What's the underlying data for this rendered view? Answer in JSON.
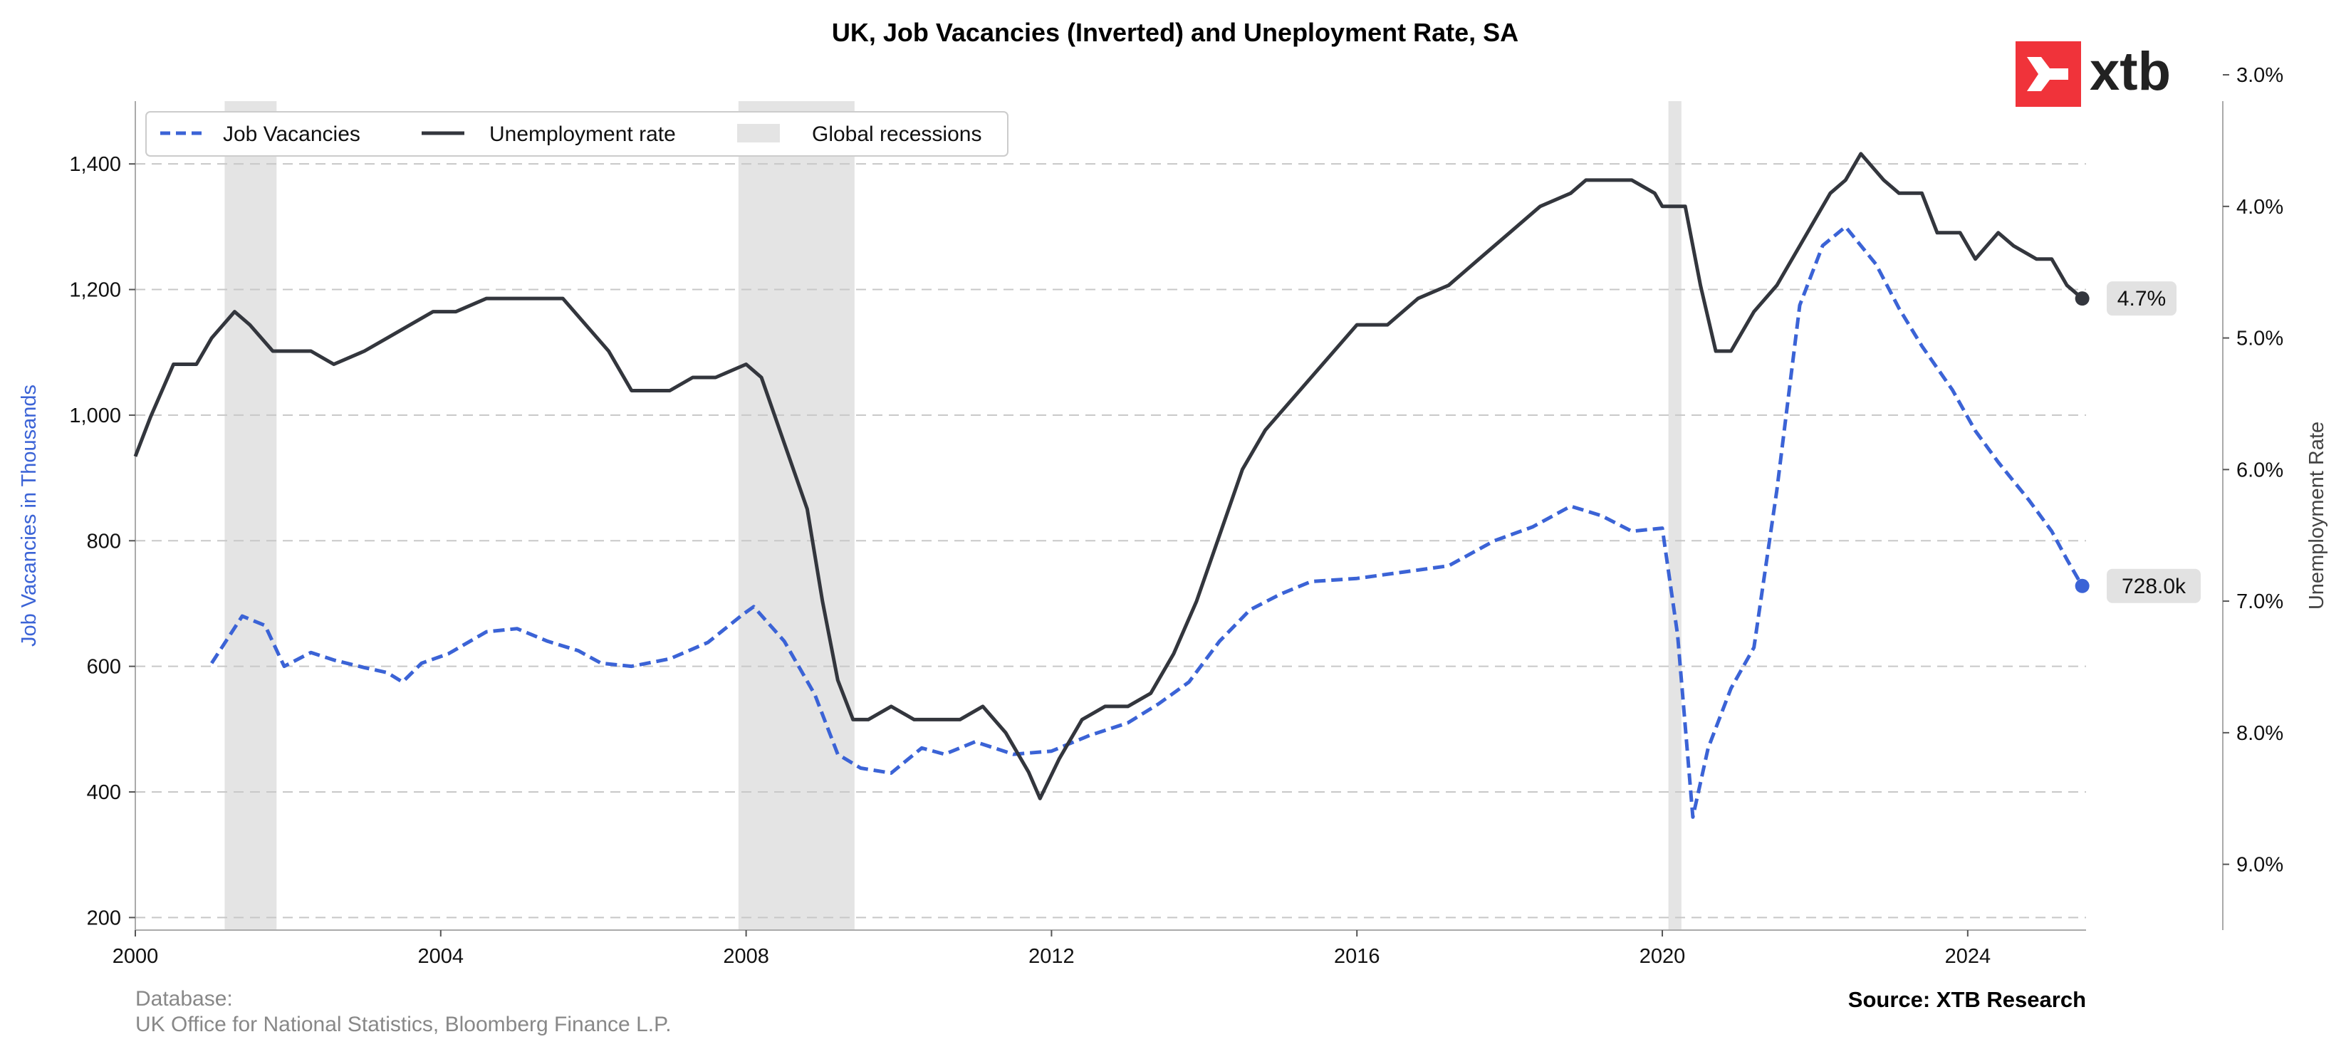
{
  "header": {
    "title": "UK, Job Vacancies (Inverted) and Uneployment Rate, SA",
    "logo_text": "xtb"
  },
  "footer": {
    "database_label": "Database:",
    "database_sources": "UK Office for National Statistics, Bloomberg Finance L.P.",
    "source": "Source: XTB Research"
  },
  "colors": {
    "vacancies": "#3b63d6",
    "unemployment": "#33363d",
    "recession": "#e4e4e4",
    "grid": "#c8c8c8",
    "logo_red": "#f0333a"
  },
  "chart_data": {
    "type": "line",
    "title": "UK, Job Vacancies (Inverted) and Uneployment Rate, SA",
    "x_axis": {
      "ticks": [
        "2000",
        "2004",
        "2008",
        "2012",
        "2016",
        "2020",
        "2024"
      ],
      "range": [
        2000.0,
        2025.55
      ]
    },
    "y_left": {
      "label": "Job Vacancies in Thousands",
      "range": [
        180,
        1500
      ],
      "ticks": [
        "200",
        "400",
        "600",
        "800",
        "1,000",
        "1,200",
        "1,400"
      ]
    },
    "y_right": {
      "label": "Unemployment Rate",
      "inverted": true,
      "range": [
        3.2,
        9.5
      ],
      "ticks": [
        "3.0%",
        "4.0%",
        "5.0%",
        "6.0%",
        "7.0%",
        "8.0%",
        "9.0%"
      ]
    },
    "grid": "horizontal dashed",
    "legend": {
      "position": "top-left",
      "entries": [
        {
          "label": "Job Vacancies",
          "style": "dashed"
        },
        {
          "label": "Unemployment rate",
          "style": "solid"
        },
        {
          "label": "Global recessions",
          "style": "band"
        }
      ]
    },
    "recessions": [
      [
        2001.17,
        2001.85
      ],
      [
        2007.9,
        2009.42
      ],
      [
        2020.08,
        2020.25
      ]
    ],
    "series": [
      {
        "name": "Job Vacancies",
        "axis": "left",
        "end_label": "728.0k",
        "x": [
          2001.0,
          2001.4,
          2001.7,
          2001.95,
          2002.3,
          2002.6,
          2003.0,
          2003.3,
          2003.5,
          2003.75,
          2004.1,
          2004.6,
          2005.0,
          2005.4,
          2005.8,
          2006.1,
          2006.5,
          2007.0,
          2007.5,
          2007.95,
          2008.1,
          2008.5,
          2008.9,
          2009.2,
          2009.5,
          2009.9,
          2010.3,
          2010.6,
          2011.0,
          2011.5,
          2012.0,
          2012.5,
          2013.0,
          2013.4,
          2013.8,
          2014.2,
          2014.6,
          2015.0,
          2015.4,
          2016.0,
          2016.6,
          2017.2,
          2017.8,
          2018.3,
          2018.8,
          2019.2,
          2019.6,
          2020.0,
          2020.2,
          2020.4,
          2020.6,
          2020.9,
          2021.2,
          2021.5,
          2021.8,
          2022.1,
          2022.4,
          2022.8,
          2023.1,
          2023.4,
          2023.8,
          2024.1,
          2024.4,
          2024.8,
          2025.1,
          2025.3,
          2025.5
        ],
        "y": [
          605,
          680,
          665,
          600,
          622,
          610,
          598,
          590,
          575,
          605,
          620,
          655,
          660,
          640,
          625,
          605,
          600,
          612,
          638,
          682,
          695,
          640,
          555,
          460,
          438,
          430,
          470,
          460,
          480,
          460,
          465,
          490,
          510,
          540,
          575,
          640,
          690,
          715,
          735,
          740,
          750,
          760,
          800,
          822,
          855,
          840,
          815,
          820,
          650,
          360,
          470,
          565,
          630,
          880,
          1175,
          1270,
          1300,
          1240,
          1170,
          1110,
          1040,
          975,
          925,
          865,
          815,
          770,
          728
        ]
      },
      {
        "name": "Unemployment rate",
        "axis": "right",
        "end_label": "4.7%",
        "x": [
          2000.0,
          2000.2,
          2000.5,
          2000.8,
          2001.0,
          2001.3,
          2001.5,
          2001.8,
          2002.0,
          2002.3,
          2002.6,
          2003.0,
          2003.3,
          2003.6,
          2003.9,
          2004.2,
          2004.6,
          2005.0,
          2005.3,
          2005.6,
          2005.9,
          2006.2,
          2006.5,
          2006.8,
          2007.0,
          2007.3,
          2007.6,
          2008.0,
          2008.2,
          2008.5,
          2008.8,
          2009.0,
          2009.2,
          2009.4,
          2009.6,
          2009.9,
          2010.2,
          2010.5,
          2010.8,
          2011.1,
          2011.4,
          2011.7,
          2011.85,
          2012.1,
          2012.4,
          2012.7,
          2013.0,
          2013.3,
          2013.6,
          2013.9,
          2014.2,
          2014.5,
          2014.8,
          2015.1,
          2015.4,
          2015.7,
          2016.0,
          2016.4,
          2016.8,
          2017.2,
          2017.6,
          2018.0,
          2018.4,
          2018.8,
          2019.0,
          2019.3,
          2019.6,
          2019.9,
          2020.0,
          2020.3,
          2020.5,
          2020.7,
          2020.9,
          2021.2,
          2021.5,
          2021.8,
          2022.0,
          2022.2,
          2022.4,
          2022.6,
          2022.9,
          2023.1,
          2023.4,
          2023.6,
          2023.9,
          2024.1,
          2024.4,
          2024.6,
          2024.9,
          2025.1,
          2025.3,
          2025.5
        ],
        "y": [
          5.9,
          5.6,
          5.2,
          5.2,
          5.0,
          4.8,
          4.9,
          5.1,
          5.1,
          5.1,
          5.2,
          5.1,
          5.0,
          4.9,
          4.8,
          4.8,
          4.7,
          4.7,
          4.7,
          4.7,
          4.9,
          5.1,
          5.4,
          5.4,
          5.4,
          5.3,
          5.3,
          5.2,
          5.3,
          5.8,
          6.3,
          7.0,
          7.6,
          7.9,
          7.9,
          7.8,
          7.9,
          7.9,
          7.9,
          7.8,
          8.0,
          8.3,
          8.5,
          8.2,
          7.9,
          7.8,
          7.8,
          7.7,
          7.4,
          7.0,
          6.5,
          6.0,
          5.7,
          5.5,
          5.3,
          5.1,
          4.9,
          4.9,
          4.7,
          4.6,
          4.4,
          4.2,
          4.0,
          3.9,
          3.8,
          3.8,
          3.8,
          3.9,
          4.0,
          4.0,
          4.6,
          5.1,
          5.1,
          4.8,
          4.6,
          4.3,
          4.1,
          3.9,
          3.8,
          3.6,
          3.8,
          3.9,
          3.9,
          4.2,
          4.2,
          4.4,
          4.2,
          4.3,
          4.4,
          4.4,
          4.6,
          4.7
        ]
      }
    ]
  }
}
